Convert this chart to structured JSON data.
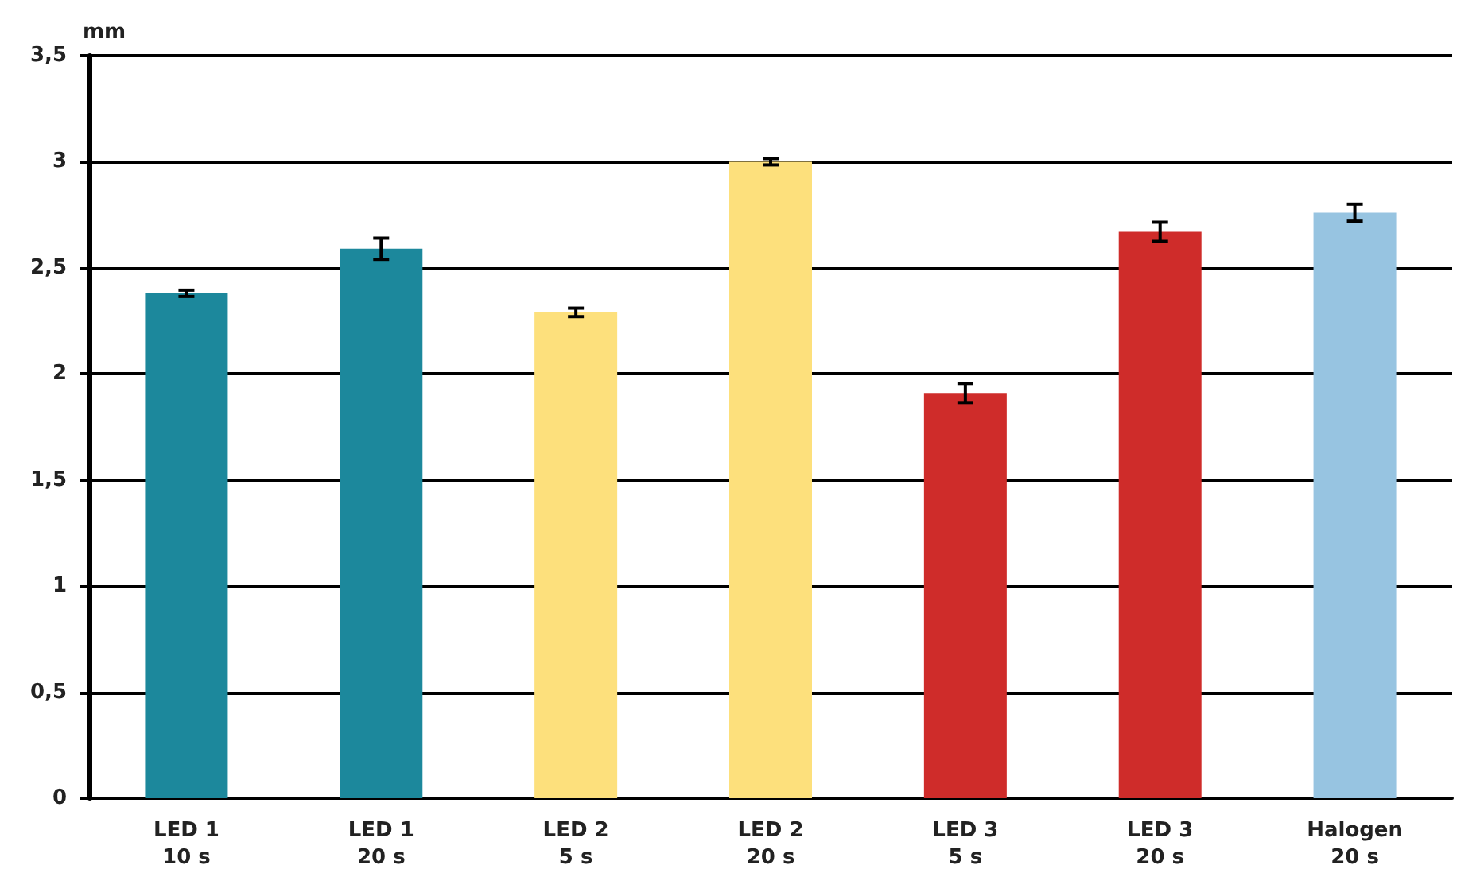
{
  "chart_data": {
    "type": "bar",
    "ylabel": "mm",
    "categories": [
      "LED 1\n10 s",
      "LED 1\n20 s",
      "LED 2\n5 s",
      "LED 2\n20 s",
      "LED 3\n5 s",
      "LED 3\n20 s",
      "Halogen\n20 s"
    ],
    "values": [
      2.38,
      2.59,
      2.29,
      3.0,
      1.91,
      2.67,
      2.76
    ],
    "colors": [
      "#1c889c",
      "#1c889c",
      "#fde07c",
      "#fde07c",
      "#cf2c2a",
      "#cf2c2a",
      "#97c4e1"
    ],
    "errors": [
      0.015,
      0.05,
      0.02,
      0.015,
      0.045,
      0.045,
      0.04
    ],
    "ylim": [
      0,
      3.5
    ],
    "yticks": [
      0,
      {
        "value": 0.5,
        "label": "0,5"
      },
      1,
      {
        "value": 1.5,
        "label": "1,5"
      },
      2,
      {
        "value": 2.5,
        "label": "2,5"
      },
      3,
      {
        "value": 3.5,
        "label": "3,5"
      }
    ],
    "grid": "y"
  }
}
